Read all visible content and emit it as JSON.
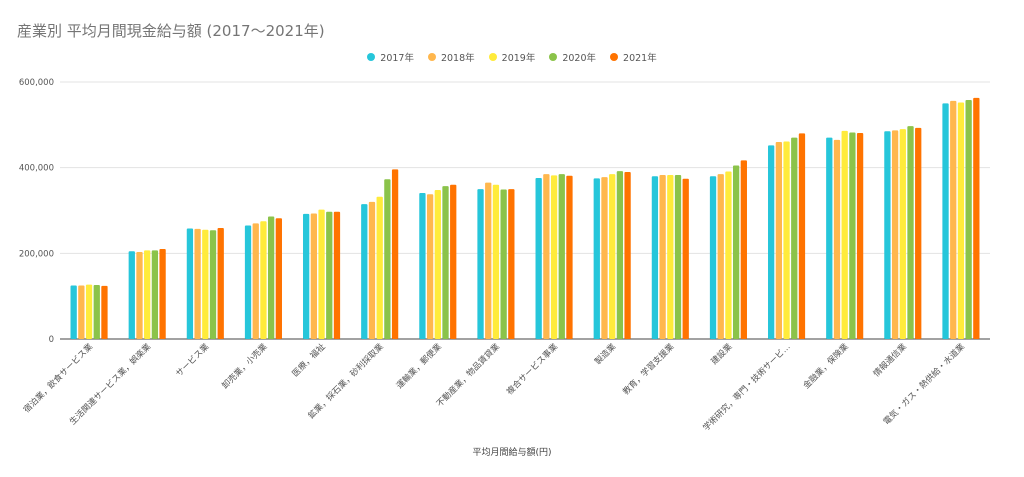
{
  "chart_data": {
    "type": "bar",
    "title": "産業別 平均月間現金給与額 (2017～2021年)",
    "xlabel": "平均月間給与額(円)",
    "ylabel": "",
    "ylim": [
      0,
      600000
    ],
    "yticks": [
      0,
      200000,
      400000,
      600000
    ],
    "ytick_labels": [
      "0",
      "200,000",
      "400,000",
      "600,000"
    ],
    "grid": true,
    "legend_position": "top",
    "categories": [
      "宿泊業，飲食サービス業",
      "生活関連サービス業，娯楽業",
      "サービス業",
      "卸売業，小売業",
      "医療，福祉",
      "鉱業，採石業，砂利採取業",
      "運輸業，郵便業",
      "不動産業，物品賃貸業",
      "複合サービス事業",
      "製造業",
      "教育，学習支援業",
      "建設業",
      "学術研究，専門・技術サービ…",
      "金融業，保険業",
      "情報通信業",
      "電気・ガス・熱供給・水道業"
    ],
    "series": [
      {
        "name": "2017年",
        "color": "#26C6DA",
        "values": [
          125000,
          205000,
          258000,
          265000,
          292000,
          315000,
          341000,
          350000,
          376000,
          375000,
          380000,
          380000,
          452000,
          470000,
          485000,
          550000
        ]
      },
      {
        "name": "2018年",
        "color": "#FFB74D",
        "values": [
          125000,
          203000,
          257000,
          270000,
          293000,
          320000,
          338000,
          365000,
          385000,
          378000,
          383000,
          385000,
          460000,
          465000,
          487000,
          556000
        ]
      },
      {
        "name": "2019年",
        "color": "#FFEB3B",
        "values": [
          127000,
          207000,
          255000,
          275000,
          302000,
          332000,
          348000,
          360000,
          382000,
          385000,
          383000,
          391000,
          461000,
          486000,
          490000,
          552000
        ]
      },
      {
        "name": "2020年",
        "color": "#8BC34A",
        "values": [
          126000,
          207000,
          254000,
          286000,
          297000,
          373000,
          357000,
          349000,
          385000,
          392000,
          383000,
          405000,
          470000,
          482000,
          497000,
          558000
        ]
      },
      {
        "name": "2021年",
        "color": "#FF7300",
        "values": [
          124000,
          210000,
          259000,
          282000,
          297000,
          396000,
          360000,
          350000,
          381000,
          390000,
          374000,
          417000,
          480000,
          481000,
          493000,
          563000
        ]
      }
    ]
  }
}
